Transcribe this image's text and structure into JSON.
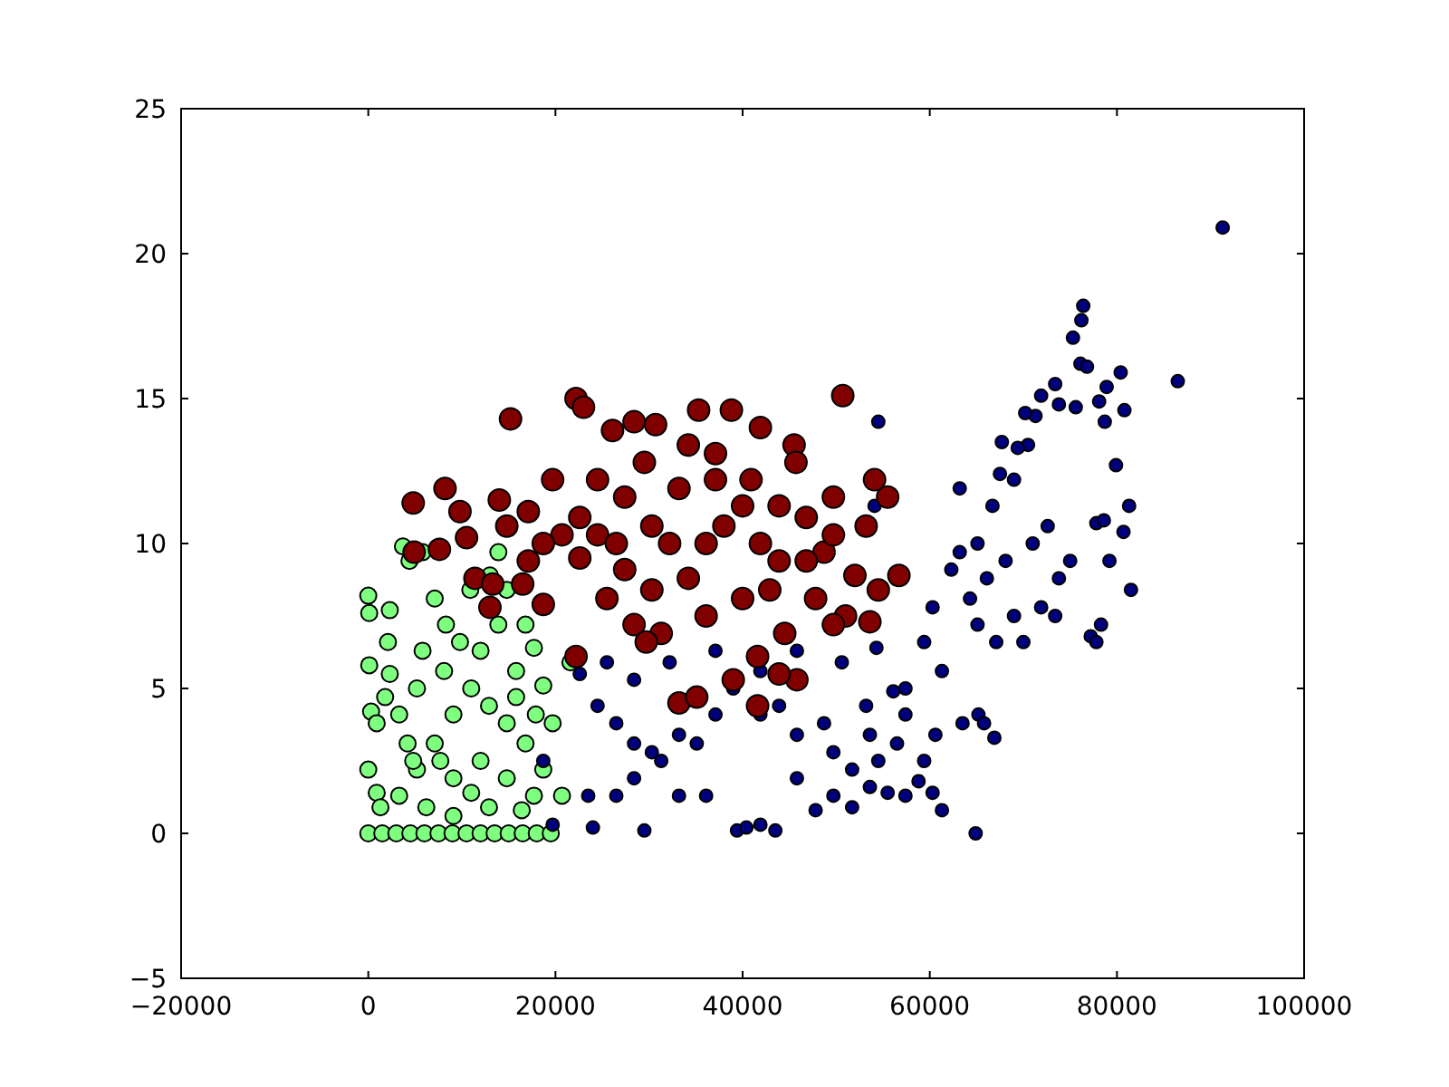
{
  "chart_data": {
    "type": "scatter",
    "xlim": [
      -20000,
      100000
    ],
    "ylim": [
      -5,
      25
    ],
    "xticks": [
      -20000,
      0,
      20000,
      40000,
      60000,
      80000,
      100000
    ],
    "yticks": [
      -5,
      0,
      5,
      10,
      15,
      20,
      25
    ],
    "grid": false,
    "marker": "circle",
    "series": [
      {
        "color": "#7fff7f",
        "x": [
          0,
          1500,
          3000,
          4500,
          6000,
          7500,
          9000,
          10500,
          12000,
          13500,
          15000,
          16500,
          18000,
          19500,
          3700,
          4400,
          5800,
          0,
          100,
          2300,
          2100,
          2300,
          100,
          300,
          900,
          1800,
          0,
          900,
          1300,
          3300,
          4200,
          5200,
          5800,
          7100,
          8300,
          9800,
          10900,
          13000,
          14800,
          13900,
          16800,
          17700,
          18700,
          19700,
          20700,
          18700,
          16800,
          14800,
          12900,
          11000,
          9100,
          7100,
          5200,
          3300,
          6200,
          9100,
          12000,
          14800,
          17700,
          8100,
          12000,
          15800,
          13900,
          9100,
          12900,
          11000,
          7700,
          15800,
          21600,
          4800,
          16400,
          17900
        ],
        "values": [
          0,
          0,
          0,
          0,
          0,
          0,
          0,
          0,
          0,
          0,
          0,
          0,
          0,
          0,
          9.9,
          9.4,
          9.7,
          8.2,
          7.6,
          7.7,
          6.6,
          5.5,
          5.8,
          4.2,
          3.8,
          4.7,
          2.2,
          1.4,
          0.9,
          4.1,
          3.1,
          5.0,
          6.3,
          8.1,
          7.2,
          6.6,
          8.4,
          8.9,
          8.4,
          9.7,
          7.2,
          6.4,
          5.1,
          3.8,
          1.3,
          2.2,
          3.1,
          3.8,
          4.4,
          5.0,
          4.1,
          3.1,
          2.2,
          1.3,
          0.9,
          1.9,
          2.5,
          1.9,
          1.3,
          5.6,
          6.3,
          5.6,
          7.2,
          0.6,
          0.9,
          1.4,
          2.5,
          4.7,
          5.9,
          2.5,
          0.8,
          4.1
        ]
      },
      {
        "color": "#00007f",
        "x": [
          91300,
          86500,
          76400,
          76200,
          75300,
          76100,
          76800,
          73400,
          73800,
          75600,
          78900,
          78100,
          80400,
          80800,
          78700,
          79900,
          81300,
          81500,
          80700,
          77800,
          78600,
          79200,
          77200,
          77800,
          78300,
          71900,
          71300,
          70500,
          69400,
          70200,
          67700,
          69000,
          67500,
          66700,
          65100,
          63200,
          62300,
          64300,
          66100,
          68100,
          71000,
          72600,
          73800,
          75000,
          71900,
          69000,
          67100,
          65100,
          70000,
          73400,
          60300,
          59400,
          61300,
          57400,
          63200,
          60600,
          65200,
          65800,
          66900,
          63500,
          61300,
          64900,
          54500,
          54100,
          54300,
          53200,
          56100,
          57400,
          56500,
          54500,
          51700,
          49700,
          48700,
          45800,
          43900,
          41900,
          39000,
          37100,
          35100,
          33200,
          31300,
          28400,
          26500,
          24000,
          23500,
          24500,
          26500,
          28400,
          30300,
          29500,
          33200,
          36100,
          39400,
          40400,
          41900,
          43500,
          45800,
          47800,
          49700,
          51700,
          53600,
          55500,
          57400,
          58800,
          60300,
          45800,
          50600,
          41900,
          37100,
          32200,
          28400,
          25500,
          22600,
          59400,
          53600,
          18700,
          19700
        ],
        "values": [
          20.9,
          15.6,
          18.2,
          17.7,
          17.1,
          16.2,
          16.1,
          15.5,
          14.8,
          14.7,
          15.4,
          14.9,
          15.9,
          14.6,
          14.2,
          12.7,
          11.3,
          8.4,
          10.4,
          10.7,
          10.8,
          9.4,
          6.8,
          6.6,
          7.2,
          15.1,
          14.4,
          13.4,
          13.3,
          14.5,
          13.5,
          12.2,
          12.4,
          11.3,
          10.0,
          9.7,
          9.1,
          8.1,
          8.8,
          9.4,
          10.0,
          10.6,
          8.8,
          9.4,
          7.8,
          7.5,
          6.6,
          7.2,
          6.6,
          7.5,
          7.8,
          6.6,
          5.6,
          5.0,
          11.9,
          3.4,
          4.1,
          3.8,
          3.3,
          3.8,
          0.8,
          0.0,
          14.2,
          11.3,
          6.4,
          4.4,
          4.9,
          4.1,
          3.1,
          2.5,
          2.2,
          2.8,
          3.8,
          3.4,
          4.4,
          4.1,
          5.0,
          4.1,
          3.1,
          3.4,
          2.5,
          1.9,
          1.3,
          0.2,
          1.3,
          4.4,
          3.8,
          3.1,
          2.8,
          0.1,
          1.3,
          1.3,
          0.1,
          0.2,
          0.3,
          0.1,
          1.9,
          0.8,
          1.3,
          0.9,
          1.6,
          1.4,
          1.3,
          1.8,
          1.4,
          6.3,
          5.9,
          5.6,
          6.3,
          5.9,
          5.3,
          5.9,
          5.5,
          2.5,
          3.4,
          2.5,
          0.3
        ]
      },
      {
        "color": "#800000",
        "x": [
          15200,
          22200,
          23000,
          8200,
          14000,
          4800,
          9800,
          17100,
          10500,
          7600,
          4900,
          11400,
          13300,
          16500,
          13000,
          18700,
          22200,
          26100,
          28400,
          30700,
          35300,
          38800,
          34200,
          41900,
          45500,
          50700,
          45700,
          54100,
          55500,
          53200,
          56700,
          54500,
          52000,
          51000,
          49700,
          53600,
          48700,
          46800,
          47800,
          44500,
          41600,
          39000,
          41600,
          33200,
          35100,
          22600,
          20700,
          19700,
          24500,
          27400,
          30300,
          32200,
          36100,
          38000,
          40000,
          41900,
          43900,
          34200,
          30300,
          27400,
          25500,
          28400,
          31300,
          36100,
          40000,
          42900,
          24500,
          26500,
          33200,
          37100,
          40900,
          43900,
          46800,
          49700,
          49700,
          18700,
          17100,
          29700,
          45800,
          43900,
          37100,
          29500,
          22600,
          14800
        ],
        "values": [
          14.3,
          15.0,
          14.7,
          11.9,
          11.5,
          11.4,
          11.1,
          11.1,
          10.2,
          9.8,
          9.7,
          8.8,
          8.6,
          8.6,
          7.8,
          7.9,
          6.1,
          13.9,
          14.2,
          14.1,
          14.6,
          14.6,
          13.4,
          14.0,
          13.4,
          15.1,
          12.8,
          12.2,
          11.6,
          10.6,
          8.9,
          8.4,
          8.9,
          7.5,
          7.2,
          7.3,
          9.7,
          9.4,
          8.1,
          6.9,
          6.1,
          5.3,
          4.4,
          4.5,
          4.7,
          9.5,
          10.3,
          12.2,
          12.2,
          11.6,
          10.6,
          10.0,
          10.0,
          10.6,
          11.3,
          10.0,
          9.4,
          8.8,
          8.4,
          9.1,
          8.1,
          7.2,
          6.9,
          7.5,
          8.1,
          8.4,
          10.3,
          10.0,
          11.9,
          12.2,
          12.2,
          11.3,
          10.9,
          11.6,
          10.3,
          10.0,
          9.4,
          6.6,
          5.3,
          5.5,
          13.1,
          12.8,
          10.9,
          10.6
        ]
      }
    ]
  }
}
